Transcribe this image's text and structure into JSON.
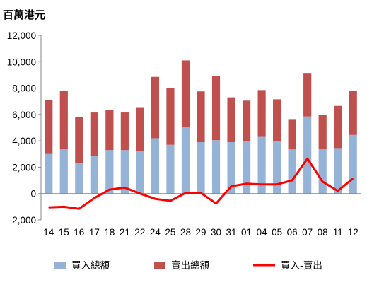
{
  "chart_data": {
    "type": "bar",
    "title": "百萬港元",
    "categories": [
      "14",
      "15",
      "16",
      "17",
      "18",
      "21",
      "22",
      "24",
      "25",
      "28",
      "29",
      "30",
      "31",
      "01",
      "04",
      "05",
      "06",
      "07",
      "08",
      "11",
      "12"
    ],
    "yticks": [
      "-2,000",
      "0",
      "2,000",
      "4,000",
      "6,000",
      "8,000",
      "10,000",
      "12,000"
    ],
    "ylim": [
      -2000,
      12000
    ],
    "stacked": true,
    "series": [
      {
        "name": "買入總額",
        "kind": "bar",
        "color": "#95B3D7",
        "values": [
          3000,
          3350,
          2300,
          2850,
          3300,
          3300,
          3250,
          4200,
          3700,
          5050,
          3900,
          4050,
          3900,
          3950,
          4300,
          3950,
          3350,
          5850,
          3400,
          3450,
          4450
        ]
      },
      {
        "name": "賣出總額",
        "kind": "bar",
        "color": "#C0504D",
        "values": [
          4100,
          4450,
          3500,
          3300,
          3050,
          2850,
          3250,
          4650,
          4300,
          5050,
          3850,
          4850,
          3400,
          3100,
          3550,
          3200,
          2300,
          3300,
          2550,
          3200,
          3350
        ]
      },
      {
        "name": "買入-賣出",
        "kind": "line",
        "color": "#FF0000",
        "values": [
          -1050,
          -1000,
          -1150,
          -350,
          300,
          450,
          0,
          -400,
          -550,
          50,
          50,
          -750,
          550,
          750,
          700,
          700,
          1000,
          2650,
          900,
          200,
          1150
        ]
      }
    ],
    "legend_position": "bottom",
    "grid": false
  }
}
